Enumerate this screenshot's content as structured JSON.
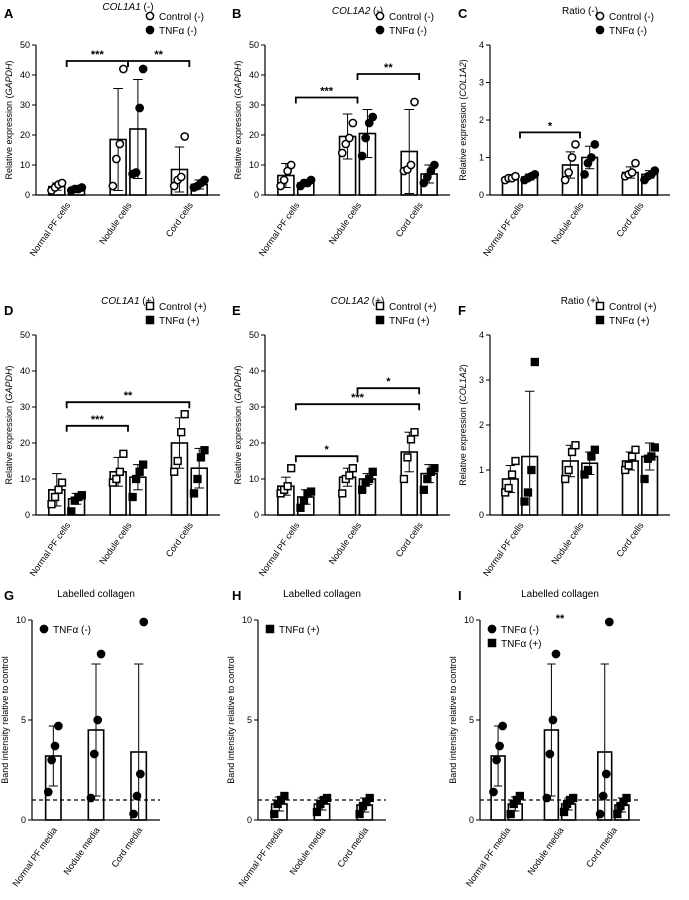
{
  "panels": [
    {
      "letter": "A",
      "title": "COL1A1 (-)",
      "title_italic": "COL1A1",
      "title_rest": " (-)",
      "ylabel": "Relative expression (",
      "ylabel_italic": "GAPDH",
      "ylabel_tail": ")",
      "ylim": [
        0,
        50
      ],
      "yticks": [
        0,
        10,
        20,
        30,
        40,
        50
      ],
      "categories": [
        "Normal PF cells",
        "Nodule cells",
        "Cord cells"
      ],
      "legend": [
        {
          "name": "Control (-)",
          "marker": "circle-open"
        },
        {
          "name": "TNFα (-)",
          "marker": "circle-filled"
        }
      ],
      "chart_data": {
        "type": "bar",
        "categories": [
          "Normal PF cells",
          "Nodule cells",
          "Cord cells"
        ],
        "series": [
          {
            "name": "Control (-)",
            "values": [
              2.8,
              18.5,
              8.5
            ],
            "sd": [
              1.2,
              17,
              7.5
            ],
            "points": [
              [
                1.5,
                2.5,
                3.5,
                4.0
              ],
              [
                3.0,
                12.0,
                17.0,
                42.0
              ],
              [
                3.0,
                5.0,
                6.0,
                19.5
              ]
            ]
          },
          {
            "name": "TNFα (-)",
            "values": [
              2.0,
              22.0,
              3.5
            ],
            "sd": [
              0.6,
              16.5,
              1.5
            ],
            "points": [
              [
                1.5,
                2.0,
                2.0,
                2.5
              ],
              [
                7.0,
                7.5,
                29.0,
                42.0
              ],
              [
                2.5,
                3.0,
                4.0,
                5.0
              ]
            ]
          }
        ],
        "ylim": [
          0,
          50
        ],
        "significance": [
          {
            "label": "***",
            "from": "Normal PF cells",
            "to": "Nodule cells"
          },
          {
            "label": "**",
            "from": "Nodule cells",
            "to": "Cord cells"
          }
        ]
      }
    },
    {
      "letter": "B",
      "title": "COL1A2 (-)",
      "title_italic": "COL1A2",
      "title_rest": " (-)",
      "ylabel": "Relative expression (",
      "ylabel_italic": "GAPDH",
      "ylabel_tail": ")",
      "ylim": [
        0,
        50
      ],
      "yticks": [
        0,
        10,
        20,
        30,
        40,
        50
      ],
      "categories": [
        "Normal PF cells",
        "Nodule cells",
        "Cord cells"
      ],
      "legend": [
        {
          "name": "Control (-)",
          "marker": "circle-open"
        },
        {
          "name": "TNFα (-)",
          "marker": "circle-filled"
        }
      ],
      "chart_data": {
        "type": "bar",
        "categories": [
          "Normal PF cells",
          "Nodule cells",
          "Cord cells"
        ],
        "series": [
          {
            "name": "Control (-)",
            "values": [
              6.5,
              19.5,
              14.5
            ],
            "sd": [
              4.0,
              7.5,
              14.0
            ],
            "points": [
              [
                3.0,
                5.0,
                8.0,
                10.0
              ],
              [
                14.0,
                17.0,
                19.0,
                24.0
              ],
              [
                8.0,
                8.5,
                10.0,
                31.0
              ]
            ]
          },
          {
            "name": "TNFα (-)",
            "values": [
              4.0,
              20.5,
              7.0
            ],
            "sd": [
              1.0,
              8.0,
              3.0
            ],
            "points": [
              [
                3.0,
                4.0,
                4.0,
                5.0
              ],
              [
                13.0,
                19.0,
                24.0,
                26.0
              ],
              [
                4.0,
                6.0,
                8.0,
                10.0
              ]
            ]
          }
        ],
        "ylim": [
          0,
          50
        ],
        "significance": [
          {
            "label": "***",
            "from": "Normal PF cells",
            "to": "Nodule cells"
          },
          {
            "label": "**",
            "from": "Nodule cells",
            "to": "Cord cells"
          }
        ]
      }
    },
    {
      "letter": "C",
      "title": "Ratio (-)",
      "title_italic": "",
      "title_rest": "Ratio (-)",
      "ylabel": "Relative expression (",
      "ylabel_italic": "COL1A2",
      "ylabel_tail": ")",
      "ylim": [
        0,
        4
      ],
      "yticks": [
        0,
        1,
        2,
        3,
        4
      ],
      "categories": [
        "Normal PF cells",
        "Nodule cells",
        "Cord cells"
      ],
      "legend": [
        {
          "name": "Control (-)",
          "marker": "circle-open"
        },
        {
          "name": "TNFα (-)",
          "marker": "circle-filled"
        }
      ],
      "chart_data": {
        "type": "bar",
        "categories": [
          "Normal PF cells",
          "Nodule cells",
          "Cord cells"
        ],
        "series": [
          {
            "name": "Control (-)",
            "values": [
              0.45,
              0.8,
              0.6
            ],
            "sd": [
              0.05,
              0.35,
              0.15
            ],
            "points": [
              [
                0.4,
                0.45,
                0.45,
                0.5
              ],
              [
                0.4,
                0.6,
                1.0,
                1.35
              ],
              [
                0.5,
                0.55,
                0.6,
                0.85
              ]
            ]
          },
          {
            "name": "TNFα (-)",
            "values": [
              0.48,
              1.0,
              0.55
            ],
            "sd": [
              0.08,
              0.3,
              0.1
            ],
            "points": [
              [
                0.4,
                0.45,
                0.5,
                0.55
              ],
              [
                0.55,
                0.85,
                1.0,
                1.35
              ],
              [
                0.4,
                0.5,
                0.55,
                0.65
              ]
            ]
          }
        ],
        "ylim": [
          0,
          4
        ],
        "significance": [
          {
            "label": "*",
            "from": "Normal PF cells",
            "to": "Nodule cells"
          }
        ]
      }
    },
    {
      "letter": "D",
      "title": "COL1A1 (+)",
      "title_italic": "COL1A1",
      "title_rest": " (+)",
      "ylabel": "Relative expression (",
      "ylabel_italic": "GAPDH",
      "ylabel_tail": ")",
      "ylim": [
        0,
        50
      ],
      "yticks": [
        0,
        10,
        20,
        30,
        40,
        50
      ],
      "categories": [
        "Normal PF cells",
        "Nodule cells",
        "Cord cells"
      ],
      "legend": [
        {
          "name": "Control (+)",
          "marker": "square-open"
        },
        {
          "name": "TNFα (+)",
          "marker": "square-filled"
        }
      ],
      "chart_data": {
        "type": "bar",
        "categories": [
          "Normal PF cells",
          "Nodule cells",
          "Cord cells"
        ],
        "series": [
          {
            "name": "Control (+)",
            "values": [
              7.0,
              12.0,
              20.0
            ],
            "sd": [
              4.5,
              4.0,
              7.0
            ],
            "points": [
              [
                3.0,
                5.0,
                7.0,
                9.0
              ],
              [
                9.0,
                10.0,
                12.0,
                17.0
              ],
              [
                12.0,
                15.0,
                23.0,
                28.0
              ]
            ]
          },
          {
            "name": "TNFα (+)",
            "values": [
              4.5,
              10.5,
              13.0
            ],
            "sd": [
              1.5,
              3.5,
              5.5
            ],
            "points": [
              [
                1.0,
                4.0,
                5.0,
                5.5
              ],
              [
                5.0,
                10.0,
                12.0,
                14.0
              ],
              [
                6.0,
                10.0,
                16.0,
                18.0
              ]
            ]
          }
        ],
        "ylim": [
          0,
          50
        ],
        "significance": [
          {
            "label": "**",
            "from": "Normal PF cells",
            "to": "Cord cells"
          },
          {
            "label": "***",
            "from": "Normal PF cells",
            "to": "Nodule cells"
          }
        ]
      }
    },
    {
      "letter": "E",
      "title": "COL1A2 (+)",
      "title_italic": "COL1A2",
      "title_rest": " (+)",
      "ylabel": "Relative expression (",
      "ylabel_italic": "GAPDH",
      "ylabel_tail": ")",
      "ylim": [
        0,
        50
      ],
      "yticks": [
        0,
        10,
        20,
        30,
        40,
        50
      ],
      "categories": [
        "Normal PF cells",
        "Nodule cells",
        "Cord cells"
      ],
      "legend": [
        {
          "name": "Control (+)",
          "marker": "square-open"
        },
        {
          "name": "TNFα (+)",
          "marker": "square-filled"
        }
      ],
      "chart_data": {
        "type": "bar",
        "categories": [
          "Normal PF cells",
          "Nodule cells",
          "Cord cells"
        ],
        "series": [
          {
            "name": "Control (+)",
            "values": [
              8.0,
              10.5,
              17.5
            ],
            "sd": [
              2.5,
              2.5,
              5.5
            ],
            "points": [
              [
                6.0,
                7.0,
                8.0,
                13.0
              ],
              [
                6.0,
                10.0,
                11.0,
                13.0
              ],
              [
                10.0,
                16.0,
                21.0,
                23.0
              ]
            ]
          },
          {
            "name": "TNFα (+)",
            "values": [
              5.0,
              10.0,
              11.5
            ],
            "sd": [
              2.0,
              1.5,
              2.5
            ],
            "points": [
              [
                2.0,
                4.0,
                6.0,
                6.5
              ],
              [
                7.0,
                9.0,
                10.0,
                12.0
              ],
              [
                7.0,
                10.0,
                12.0,
                13.0
              ]
            ]
          }
        ],
        "ylim": [
          0,
          50
        ],
        "significance": [
          {
            "label": "*",
            "from": "Normal PF cells",
            "to": "Nodule cells"
          },
          {
            "label": "***",
            "from": "Normal PF cells",
            "to": "Cord cells"
          },
          {
            "label": "*",
            "from": "Nodule cells",
            "to": "Cord cells"
          }
        ]
      }
    },
    {
      "letter": "F",
      "title": "Ratio (+)",
      "title_italic": "",
      "title_rest": "Ratio (+)",
      "ylabel": "Relative expression (",
      "ylabel_italic": "COL1A2",
      "ylabel_tail": ")",
      "ylim": [
        0,
        4
      ],
      "yticks": [
        0,
        1,
        2,
        3,
        4
      ],
      "categories": [
        "Normal PF cells",
        "Nodule cells",
        "Cord cells"
      ],
      "legend": [
        {
          "name": "Control (+)",
          "marker": "square-open"
        },
        {
          "name": "TNFα (+)",
          "marker": "square-filled"
        }
      ],
      "chart_data": {
        "type": "bar",
        "categories": [
          "Normal PF cells",
          "Nodule cells",
          "Cord cells"
        ],
        "series": [
          {
            "name": "Control (+)",
            "values": [
              0.8,
              1.2,
              1.2
            ],
            "sd": [
              0.3,
              0.35,
              0.2
            ],
            "points": [
              [
                0.5,
                0.6,
                0.9,
                1.2
              ],
              [
                0.8,
                1.0,
                1.4,
                1.55
              ],
              [
                1.0,
                1.1,
                1.3,
                1.45
              ]
            ]
          },
          {
            "name": "TNFα (+)",
            "values": [
              1.3,
              1.15,
              1.3
            ],
            "sd": [
              1.45,
              0.25,
              0.3
            ],
            "points": [
              [
                0.3,
                0.5,
                1.0,
                3.4
              ],
              [
                0.9,
                1.0,
                1.3,
                1.45
              ],
              [
                0.8,
                1.25,
                1.3,
                1.5
              ]
            ]
          }
        ],
        "ylim": [
          0,
          4
        ],
        "significance": []
      }
    },
    {
      "letter": "G",
      "title": "Labelled collagen",
      "title_italic": "",
      "title_rest": "Labelled collagen",
      "ylabel": "Band intensity relative to control",
      "ylabel_italic": "",
      "ylabel_tail": "",
      "ylim": [
        0,
        10
      ],
      "yticks": [
        0,
        5,
        10
      ],
      "categories": [
        "Normal PF media",
        "Nodule media",
        "Cord media"
      ],
      "legend": [
        {
          "name": "TNFα (-)",
          "marker": "circle-filled"
        }
      ],
      "reference_line": 1,
      "chart_data": {
        "type": "bar",
        "categories": [
          "Normal PF media",
          "Nodule media",
          "Cord media"
        ],
        "series": [
          {
            "name": "TNFα (-)",
            "values": [
              3.2,
              4.5,
              3.4
            ],
            "sd": [
              1.5,
              3.3,
              4.4
            ],
            "points": [
              [
                1.4,
                3.0,
                3.7,
                4.7
              ],
              [
                1.1,
                3.3,
                5.0,
                8.3
              ],
              [
                0.3,
                1.2,
                2.3,
                9.9
              ]
            ]
          }
        ],
        "ylim": [
          0,
          10
        ],
        "significance": []
      }
    },
    {
      "letter": "H",
      "title": "Labelled collagen",
      "title_italic": "",
      "title_rest": "Labelled collagen",
      "ylabel": "Band intensity relative to control",
      "ylabel_italic": "",
      "ylabel_tail": "",
      "ylim": [
        0,
        10
      ],
      "yticks": [
        0,
        5,
        10
      ],
      "categories": [
        "Normal PF media",
        "Nodule media",
        "Cord media"
      ],
      "legend": [
        {
          "name": "TNFα (+)",
          "marker": "square-filled"
        }
      ],
      "reference_line": 1,
      "chart_data": {
        "type": "bar",
        "categories": [
          "Normal PF media",
          "Nodule media",
          "Cord media"
        ],
        "series": [
          {
            "name": "TNFα (+)",
            "values": [
              0.8,
              0.8,
              0.75
            ],
            "sd": [
              0.35,
              0.3,
              0.35
            ],
            "points": [
              [
                0.3,
                0.8,
                1.0,
                1.2
              ],
              [
                0.4,
                0.8,
                1.0,
                1.1
              ],
              [
                0.3,
                0.7,
                0.9,
                1.1
              ]
            ]
          }
        ],
        "ylim": [
          0,
          10
        ],
        "significance": []
      }
    },
    {
      "letter": "I",
      "title": "Labelled collagen",
      "title_italic": "",
      "title_rest": "Labelled collagen",
      "ylabel": "Band intensity relative to control",
      "ylabel_italic": "",
      "ylabel_tail": "",
      "ylim": [
        0,
        10
      ],
      "yticks": [
        0,
        5,
        10
      ],
      "categories": [
        "Normal PF media",
        "Nodule media",
        "Cord media"
      ],
      "legend": [
        {
          "name": "TNFα (-)",
          "marker": "circle-filled"
        },
        {
          "name": "TNFα (+)",
          "marker": "square-filled"
        }
      ],
      "reference_line": 1,
      "chart_data": {
        "type": "bar",
        "categories": [
          "Normal PF media",
          "Nodule media",
          "Cord media"
        ],
        "series": [
          {
            "name": "TNFα (-)",
            "values": [
              3.2,
              4.5,
              3.4
            ],
            "sd": [
              1.5,
              3.3,
              4.4
            ],
            "points": [
              [
                1.4,
                3.0,
                3.7,
                4.7
              ],
              [
                1.1,
                3.3,
                5.0,
                8.3
              ],
              [
                0.3,
                1.2,
                2.3,
                9.9
              ]
            ]
          },
          {
            "name": "TNFα (+)",
            "values": [
              0.8,
              0.8,
              0.75
            ],
            "sd": [
              0.35,
              0.3,
              0.35
            ],
            "points": [
              [
                0.3,
                0.8,
                1.0,
                1.2
              ],
              [
                0.4,
                0.8,
                1.0,
                1.1
              ],
              [
                0.3,
                0.7,
                0.9,
                1.1
              ]
            ]
          }
        ],
        "ylim": [
          0,
          10
        ],
        "significance": [
          {
            "label": "**",
            "from": "Nodule media",
            "to": "Nodule media"
          }
        ]
      }
    }
  ]
}
